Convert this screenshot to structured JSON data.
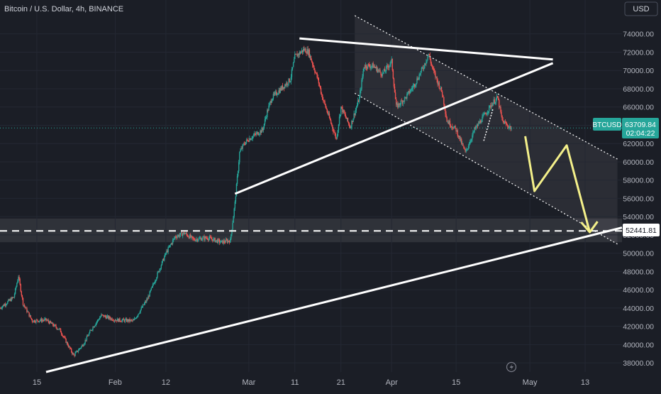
{
  "header": {
    "title": "Bitcoin / U.S. Dollar, 4h, BINANCE",
    "currency_button": "USD"
  },
  "price_labels": {
    "symbol": "BTCUSD",
    "price": "63709.84",
    "countdown": "02:04:22",
    "level": "52441.81"
  },
  "colors": {
    "background": "#1b1e26",
    "up": "#26a69a",
    "down": "#ef5350",
    "trendline": "#ffffff",
    "projection": "#f4f08a",
    "channel": "#ffffff"
  },
  "chart_data": {
    "type": "candlestick",
    "title": "Bitcoin / U.S. Dollar, 4h, BINANCE",
    "ylim": [
      37000,
      76000
    ],
    "y_ticks": [
      "74000.00",
      "72000.00",
      "70000.00",
      "68000.00",
      "66000.00",
      "64000.00",
      "62000.00",
      "60000.00",
      "58000.00",
      "56000.00",
      "54000.00",
      "52000.00",
      "50000.00",
      "48000.00",
      "46000.00",
      "44000.00",
      "42000.00",
      "40000.00",
      "38000.00"
    ],
    "x_ticks": [
      "15",
      "Feb",
      "12",
      "Mar",
      "11",
      "21",
      "Apr",
      "15",
      "May",
      "13"
    ],
    "x_tick_dates": [
      "2024-01-15",
      "2024-02-01",
      "2024-02-12",
      "2024-03-01",
      "2024-03-11",
      "2024-03-21",
      "2024-04-01",
      "2024-04-15",
      "2024-05-01",
      "2024-05-13"
    ],
    "x_range": [
      "2024-01-07",
      "2024-05-21"
    ],
    "close_path": [
      [
        "2024-01-07",
        44000
      ],
      [
        "2024-01-10",
        45200
      ],
      [
        "2024-01-11",
        47500
      ],
      [
        "2024-01-12",
        44500
      ],
      [
        "2024-01-14",
        42600
      ],
      [
        "2024-01-17",
        42700
      ],
      [
        "2024-01-20",
        41600
      ],
      [
        "2024-01-22",
        39700
      ],
      [
        "2024-01-23",
        38800
      ],
      [
        "2024-01-25",
        40000
      ],
      [
        "2024-01-27",
        41800
      ],
      [
        "2024-01-29",
        43200
      ],
      [
        "2024-02-01",
        42700
      ],
      [
        "2024-02-05",
        42600
      ],
      [
        "2024-02-08",
        45000
      ],
      [
        "2024-02-10",
        47500
      ],
      [
        "2024-02-12",
        50000
      ],
      [
        "2024-02-14",
        51800
      ],
      [
        "2024-02-16",
        52200
      ],
      [
        "2024-02-18",
        51500
      ],
      [
        "2024-02-21",
        51700
      ],
      [
        "2024-02-24",
        51200
      ],
      [
        "2024-02-26",
        51400
      ],
      [
        "2024-02-27",
        55500
      ],
      [
        "2024-02-28",
        61000
      ],
      [
        "2024-02-29",
        62000
      ],
      [
        "2024-03-01",
        62500
      ],
      [
        "2024-03-04",
        63500
      ],
      [
        "2024-03-05",
        65500
      ],
      [
        "2024-03-06",
        67000
      ],
      [
        "2024-03-08",
        68000
      ],
      [
        "2024-03-10",
        69000
      ],
      [
        "2024-03-11",
        71500
      ],
      [
        "2024-03-13",
        72300
      ],
      [
        "2024-03-14",
        72000
      ],
      [
        "2024-03-16",
        69000
      ],
      [
        "2024-03-17",
        67000
      ],
      [
        "2024-03-19",
        64000
      ],
      [
        "2024-03-20",
        62500
      ],
      [
        "2024-03-21",
        66000
      ],
      [
        "2024-03-23",
        63800
      ],
      [
        "2024-03-25",
        67000
      ],
      [
        "2024-03-26",
        70500
      ],
      [
        "2024-03-28",
        70500
      ],
      [
        "2024-03-30",
        69600
      ],
      [
        "2024-04-01",
        71000
      ],
      [
        "2024-04-02",
        66000
      ],
      [
        "2024-04-04",
        67000
      ],
      [
        "2024-04-06",
        68500
      ],
      [
        "2024-04-08",
        70500
      ],
      [
        "2024-04-09",
        71800
      ],
      [
        "2024-04-10",
        70000
      ],
      [
        "2024-04-12",
        67500
      ],
      [
        "2024-04-13",
        64500
      ],
      [
        "2024-04-15",
        63500
      ],
      [
        "2024-04-17",
        61000
      ],
      [
        "2024-04-19",
        63500
      ],
      [
        "2024-04-21",
        65000
      ],
      [
        "2024-04-23",
        66500
      ],
      [
        "2024-04-24",
        67000
      ],
      [
        "2024-04-25",
        64500
      ],
      [
        "2024-04-26",
        64000
      ],
      [
        "2024-04-27",
        63709.84
      ]
    ],
    "horizontal_level": 52441.81,
    "drawings": {
      "lower_trendline": [
        [
          "2024-01-17",
          37000
        ],
        [
          "2024-05-21",
          52800
        ]
      ],
      "upper_resistance": [
        [
          "2024-03-12",
          73500
        ],
        [
          "2024-05-06",
          71200
        ]
      ],
      "rising_support": [
        [
          "2024-02-27",
          56500
        ],
        [
          "2024-05-06",
          70800
        ]
      ],
      "channel_upper": [
        [
          "2024-03-24",
          76000
        ],
        [
          "2024-05-20",
          60300
        ]
      ],
      "channel_lower": [
        [
          "2024-03-24",
          67500
        ],
        [
          "2024-05-20",
          51000
        ]
      ],
      "projection": [
        [
          "2024-04-30",
          62800
        ],
        [
          "2024-05-02",
          56800
        ],
        [
          "2024-05-09",
          61800
        ],
        [
          "2024-05-14",
          52300
        ]
      ]
    },
    "shaded_ranges": [
      {
        "x": [
          "2024-03-24",
          "2024-05-20"
        ],
        "type": "descending-channel"
      },
      {
        "y": [
          51200,
          53800
        ],
        "type": "horizontal-zone"
      }
    ]
  }
}
